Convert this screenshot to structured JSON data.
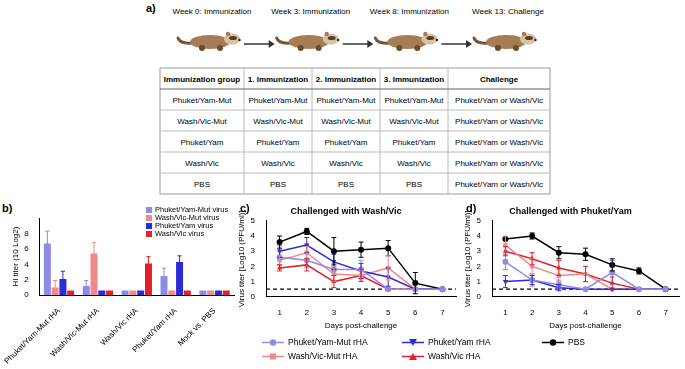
{
  "diagram": {
    "label": "a)",
    "timeline": [
      "Week 0: Immunization",
      "Week 3: Immunization",
      "Week 8: Immunization",
      "Week 13: Challenge"
    ],
    "table": {
      "header": [
        "Immunization group",
        "1. Immunization",
        "2. Immunization",
        "3. Immunization",
        "Challenge"
      ],
      "rows": [
        [
          "Phuket/Yam-Mut",
          "Phuket/Yam-Mut",
          "Phuket/Yam-Mut",
          "Phuket/Yam-Mut",
          "Phuket/Yam or Wash/Vic"
        ],
        [
          "Wash/Vic-Mut",
          "Wash/Vic-Mut",
          "Wash/Vic-Mut",
          "Wash/Vic-Mut",
          "Phuket/Yam or Wash/Vic"
        ],
        [
          "Phuket/Yam",
          "Phuket/Yam",
          "Phuket/Yam",
          "Phuket/Yam",
          "Phuket/Yam or Wash/Vic"
        ],
        [
          "Wash/Vic",
          "Wash/Vic",
          "Wash/Vic",
          "Wash/Vic",
          "Phuket/Yam or Wash/Vic"
        ],
        [
          "PBS",
          "PBS",
          "PBS",
          "PBS",
          "Phuket/Yam or Wash/Vic"
        ]
      ]
    }
  },
  "chart_data": [
    {
      "type": "bar",
      "panel": "b)",
      "y_label": "HI titer (10 Log2)",
      "categories": [
        "Phuket/Yam-Mut rHA",
        "Wash/Vic-Mut rHA",
        "Wash/Vic rHA",
        "Phuket/Yam rHA",
        "Mock vs. PBS"
      ],
      "series": [
        {
          "name": "Phuket/Yam-Mut virus",
          "color": "#8c8ce6",
          "values": [
            6.7,
            1.2,
            0.6,
            2.5,
            0.6
          ],
          "errors": [
            1.6,
            0.7,
            0,
            1.0,
            0
          ]
        },
        {
          "name": "Wash/Vic-Mut virus",
          "color": "#f08a8a",
          "values": [
            1.0,
            5.4,
            0.6,
            0.6,
            0.6
          ],
          "errors": [
            0.9,
            1.4,
            0,
            0,
            0
          ]
        },
        {
          "name": "Phuket/Yam virus",
          "color": "#2b2bd9",
          "values": [
            2.1,
            0.6,
            0.6,
            4.3,
            0.6
          ],
          "errors": [
            1.0,
            0,
            0,
            0.8,
            0
          ]
        },
        {
          "name": "Wash/Vic virus",
          "color": "#e3212b",
          "values": [
            0.6,
            0.6,
            4.1,
            0.6,
            0.6
          ],
          "errors": [
            0,
            0,
            0.9,
            0,
            0
          ]
        }
      ],
      "ylim": [
        0,
        10
      ],
      "yticks": [
        0,
        2,
        4,
        6,
        8
      ],
      "grid": false,
      "legend": "top-right"
    },
    {
      "type": "line",
      "panel": "c)",
      "title": "Challenged with Wash/Vic",
      "x_label": "Days post-challenge",
      "y_label": "Virus titer [Log10 (PFU/ml)]",
      "x": [
        1,
        2,
        3,
        4,
        5,
        6,
        7
      ],
      "series": [
        {
          "name": "Phuket/Yam-Mut rHA",
          "color": "#8c8ce6",
          "marker": "circle",
          "line_style": "solid",
          "values": [
            2.6,
            2.4,
            1.8,
            1.8,
            0.5,
            0.5,
            0.5
          ],
          "errors": [
            0.5,
            0.5,
            0.4,
            0.6,
            0,
            0,
            0
          ]
        },
        {
          "name": "Phuket/Yam rHA",
          "color": "#2b2bd9",
          "marker": "triangle-down",
          "line_style": "solid",
          "values": [
            3.0,
            3.4,
            2.3,
            1.7,
            1.3,
            0.5,
            0.5
          ],
          "errors": [
            0.4,
            0.5,
            0.5,
            0.5,
            0.6,
            0,
            0
          ]
        },
        {
          "name": "PBS",
          "color": "#000000",
          "marker": "circle",
          "line_style": "solid",
          "values": [
            3.6,
            4.3,
            3.0,
            3.1,
            3.2,
            0.9,
            0.5
          ],
          "errors": [
            0.4,
            0.2,
            0.9,
            0.5,
            0.5,
            0.7,
            0
          ]
        },
        {
          "name": "Wash/Vic-Mut rHA",
          "color": "#f08a8a",
          "marker": "square",
          "line_style": "solid",
          "values": [
            2.4,
            2.9,
            1.5,
            1.4,
            1.9,
            0.5,
            0.5
          ],
          "errors": [
            0.3,
            0.4,
            0.5,
            0.3,
            0.8,
            0,
            0
          ]
        },
        {
          "name": "Wash/Vic rHA",
          "color": "#e3212b",
          "marker": "triangle",
          "line_style": "solid",
          "values": [
            1.9,
            2.1,
            1.0,
            1.4,
            0.5,
            0.5,
            0.5
          ],
          "errors": [
            0.2,
            0.4,
            0.4,
            0.4,
            0,
            0,
            0
          ]
        }
      ],
      "xlim": [
        0.5,
        7.5
      ],
      "xticks": [
        1,
        2,
        3,
        4,
        5,
        6,
        7
      ],
      "ylim": [
        0,
        5
      ],
      "yticks": [
        0,
        1,
        2,
        3,
        4,
        5
      ],
      "hline": 0.5,
      "grid": false,
      "legend": "bottom"
    },
    {
      "type": "line",
      "panel": "d)",
      "title": "Challenged with Phuket/Yam",
      "x_label": "Days post-challenge",
      "y_label": "Virus titer [Log10 (PFU/ml)]",
      "x": [
        1,
        2,
        3,
        4,
        5,
        6,
        7
      ],
      "series": [
        {
          "name": "Phuket/Yam-Mut rHA",
          "color": "#8c8ce6",
          "marker": "circle",
          "line_style": "solid",
          "values": [
            2.3,
            1.1,
            0.8,
            0.5,
            1.6,
            0.5,
            0.5
          ],
          "errors": [
            0.5,
            0.4,
            0.3,
            0,
            0.8,
            0,
            0
          ]
        },
        {
          "name": "Phuket/Yam rHA",
          "color": "#2b2bd9",
          "marker": "triangle-down",
          "line_style": "solid",
          "values": [
            1.0,
            1.1,
            0.6,
            0.5,
            0.5,
            0.5,
            0.5
          ],
          "errors": [
            0.4,
            0.3,
            0.2,
            0,
            0,
            0,
            0
          ]
        },
        {
          "name": "PBS",
          "color": "#000000",
          "marker": "circle",
          "line_style": "solid",
          "values": [
            3.8,
            4.0,
            2.9,
            2.8,
            2.1,
            1.7,
            0.5
          ],
          "errors": [
            0.1,
            0.2,
            0.4,
            0.4,
            0.4,
            0.2,
            0
          ]
        },
        {
          "name": "Wash/Vic-Mut rHA",
          "color": "#f08a8a",
          "marker": "square",
          "line_style": "solid",
          "values": [
            3.4,
            2.0,
            1.4,
            1.5,
            0.5,
            0.5,
            0.5
          ],
          "errors": [
            0.6,
            0.5,
            0.4,
            0.5,
            0,
            0,
            0
          ]
        },
        {
          "name": "Wash/Vic rHA",
          "color": "#e3212b",
          "marker": "triangle",
          "line_style": "solid",
          "values": [
            3.0,
            2.5,
            1.9,
            1.5,
            0.9,
            0.5,
            0.5
          ],
          "errors": [
            0.3,
            0.4,
            0.5,
            0.5,
            0.4,
            0,
            0
          ]
        }
      ],
      "xlim": [
        0.5,
        7.5
      ],
      "xticks": [
        1,
        2,
        3,
        4,
        5,
        6,
        7
      ],
      "ylim": [
        0,
        5
      ],
      "yticks": [
        0,
        1,
        2,
        3,
        4,
        5
      ],
      "hline": 0.5,
      "grid": false,
      "legend": "bottom"
    }
  ]
}
